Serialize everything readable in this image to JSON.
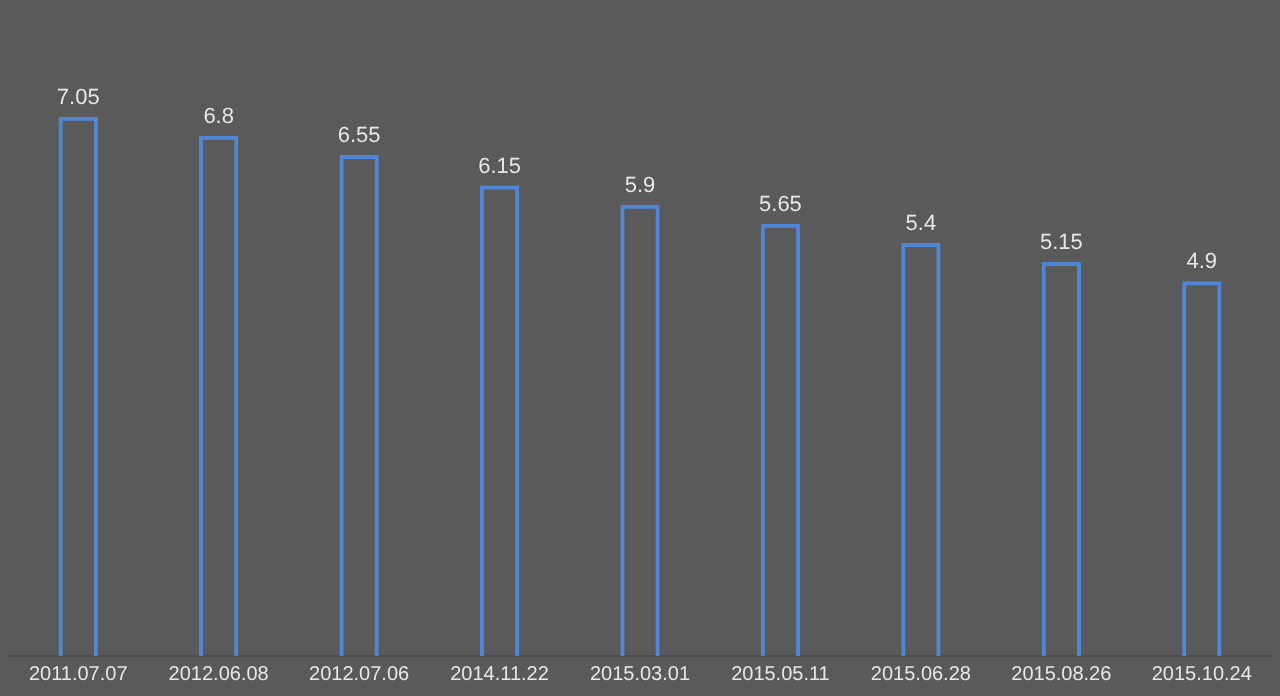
{
  "chart_data": {
    "type": "bar",
    "categories": [
      "2011.07.07",
      "2012.06.08",
      "2012.07.06",
      "2014.11.22",
      "2015.03.01",
      "2015.05.11",
      "2015.06.28",
      "2015.08.26",
      "2015.10.24"
    ],
    "values": [
      7.05,
      6.8,
      6.55,
      6.15,
      5.9,
      5.65,
      5.4,
      5.15,
      4.9
    ],
    "color": "#4f86d6",
    "data_labels": true,
    "grid": false,
    "legend": false
  }
}
